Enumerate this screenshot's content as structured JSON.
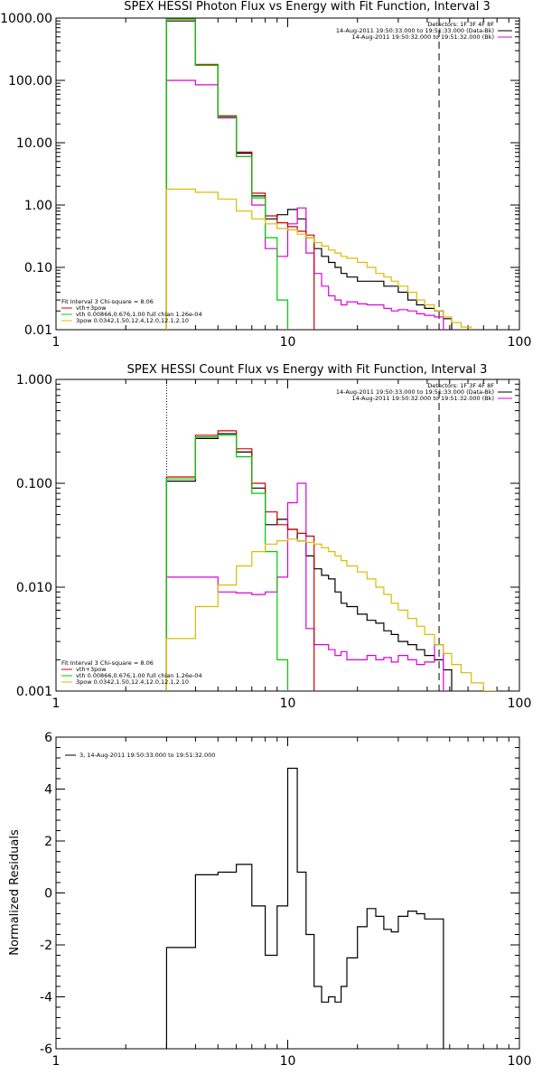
{
  "chart_data": [
    {
      "type": "line",
      "title": "SPEX HESSI Photon Flux vs Energy with Fit Function, Interval 3",
      "xscale": "log",
      "yscale": "log",
      "xlim": [
        1,
        100
      ],
      "ylim": [
        0.01,
        1000
      ],
      "xticks": [
        1,
        10,
        100
      ],
      "xtick_labels": [
        "1",
        "10",
        "100"
      ],
      "yticks": [
        0.01,
        0.1,
        1,
        10,
        100,
        1000
      ],
      "ytick_labels": [
        "0.01",
        "0.10",
        "1.00",
        "10.00",
        "100.00",
        "1000.00"
      ],
      "vlines": [
        {
          "x": 3.0,
          "style": "dotted"
        },
        {
          "x": 45,
          "style": "dashed"
        }
      ],
      "legend_top_right": [
        {
          "text": "Detectors: 1F 3F 4F 8F",
          "color": "#000000"
        },
        {
          "text": "14-Aug-2011 19:50:33.000 to 19:51:33.000 (Data-Bk)",
          "color": "#000000"
        },
        {
          "text": "14-Aug-2011 19:50:32.000 to 19:51:32.000 (Bk)",
          "color": "#dd00dd"
        }
      ],
      "legend_bottom_left": [
        {
          "text": "Fit Interval 3   Chi-square = 8.06",
          "color": "#000000"
        },
        {
          "text": "vth+3pow",
          "color": "#cc0000"
        },
        {
          "text": "vth 0.00866,0.676,1.00   full chian 1.26e-04",
          "color": "#00cc00"
        },
        {
          "text": "3pow 0.0342,1.50,12.4,12.0,12.1,2.10",
          "color": "#ddbb00"
        }
      ],
      "bin_edges": [
        3.0,
        4.0,
        5.0,
        6.0,
        7.0,
        8.0,
        9.0,
        10.0,
        11.0,
        12.0,
        13.0,
        14.0,
        15.0,
        16.0,
        17.0,
        18.0,
        20.0,
        22.0,
        24.0,
        26.0,
        28.0,
        30.0,
        33.0,
        36.0,
        39.0,
        43.0,
        47.0,
        51.0,
        56.0,
        62.0
      ],
      "series": [
        {
          "name": "Data-Bk",
          "color": "#000000",
          "values": [
            900,
            175,
            26,
            6.8,
            1.4,
            0.6,
            0.7,
            0.85,
            0.6,
            0.3,
            0.2,
            0.15,
            0.12,
            0.1,
            0.08,
            0.07,
            0.06,
            0.06,
            0.06,
            0.05,
            0.05,
            0.04,
            0.03,
            0.025,
            0.022,
            0.02,
            0.015
          ]
        },
        {
          "name": "Bk",
          "color": "#dd00dd",
          "values": [
            100,
            85,
            25,
            6,
            1,
            0.2,
            0.15,
            0.5,
            0.9,
            0.17,
            0.08,
            0.05,
            0.035,
            0.03,
            0.025,
            0.028,
            0.026,
            0.025,
            0.025,
            0.022,
            0.02,
            0.021,
            0.02,
            0.018,
            0.017,
            0.016
          ]
        },
        {
          "name": "vth+3pow",
          "color": "#cc0000",
          "values": [
            970,
            180,
            27,
            7.1,
            1.55,
            0.67,
            0.52,
            0.45,
            0.38,
            0.33
          ]
        },
        {
          "name": "vth",
          "color": "#00cc00",
          "values": [
            960,
            175,
            26,
            6,
            1.3,
            0.3,
            0.03
          ]
        },
        {
          "name": "3pow",
          "color": "#ddbb00",
          "values": [
            1.8,
            1.6,
            1.25,
            0.8,
            0.6,
            0.5,
            0.42,
            0.4,
            0.34,
            0.3,
            0.25,
            0.22,
            0.19,
            0.17,
            0.15,
            0.14,
            0.12,
            0.1,
            0.08,
            0.07,
            0.06,
            0.05,
            0.04,
            0.03,
            0.025,
            0.02,
            0.016,
            0.013,
            0.011
          ]
        }
      ]
    },
    {
      "type": "line",
      "title": "SPEX HESSI Count Flux vs Energy with Fit Function, Interval 3",
      "xscale": "log",
      "yscale": "log",
      "xlim": [
        1,
        100
      ],
      "ylim": [
        0.001,
        1.0
      ],
      "xticks": [
        1,
        10,
        100
      ],
      "xtick_labels": [
        "1",
        "10",
        "100"
      ],
      "yticks": [
        0.001,
        0.01,
        0.1,
        1.0
      ],
      "ytick_labels": [
        "0.001",
        "0.010",
        "0.100",
        "1.000"
      ],
      "vlines": [
        {
          "x": 3.0,
          "style": "dotted"
        },
        {
          "x": 45,
          "style": "dashed"
        }
      ],
      "legend_top_right": [
        {
          "text": "Detectors: 1F 3F 4F 8F",
          "color": "#000000"
        },
        {
          "text": "14-Aug-2011 19:50:33.000 to 19:51:33.000 (Data-Bk)",
          "color": "#000000"
        },
        {
          "text": "14-Aug-2011 19:50:32.000 to 19:51:32.000 (Bk)",
          "color": "#dd00dd"
        }
      ],
      "legend_bottom_left": [
        {
          "text": "Fit Interval 3   Chi-square = 8.06",
          "color": "#000000"
        },
        {
          "text": "vth+3pow",
          "color": "#cc0000"
        },
        {
          "text": "vth 0.00866,0.676,1.00   full chian 1.26e-04",
          "color": "#00cc00"
        },
        {
          "text": "3pow 0.0342,1.50,12.4,12.0,12.1,2.10",
          "color": "#ddbb00"
        }
      ],
      "bin_edges": [
        3.0,
        4.0,
        5.0,
        6.0,
        7.0,
        8.0,
        9.0,
        10.0,
        11.0,
        12.0,
        13.0,
        14.0,
        15.0,
        16.0,
        17.0,
        18.0,
        20.0,
        22.0,
        24.0,
        26.0,
        28.0,
        30.0,
        33.0,
        36.0,
        39.0,
        43.0,
        47.0,
        51.0,
        56.0,
        62.0,
        70.0,
        80.0
      ],
      "series": [
        {
          "name": "Data-Bk",
          "color": "#000000",
          "values": [
            0.105,
            0.27,
            0.3,
            0.2,
            0.09,
            0.04,
            0.045,
            0.036,
            0.028,
            0.02,
            0.015,
            0.013,
            0.012,
            0.009,
            0.007,
            0.0065,
            0.0055,
            0.0048,
            0.0045,
            0.0038,
            0.0035,
            0.003,
            0.0028,
            0.0025,
            0.0022,
            0.002,
            0.0016
          ]
        },
        {
          "name": "Bk",
          "color": "#dd00dd",
          "values": [
            0.0125,
            0.0125,
            0.009,
            0.0088,
            0.0085,
            0.009,
            0.0125,
            0.065,
            0.1,
            0.004,
            0.0028,
            0.0028,
            0.0025,
            0.0022,
            0.0024,
            0.002,
            0.002,
            0.0022,
            0.002,
            0.0021,
            0.0019,
            0.0022,
            0.002,
            0.0018,
            0.0019,
            0.0028
          ]
        },
        {
          "name": "vth+3pow",
          "color": "#cc0000",
          "values": [
            0.115,
            0.29,
            0.32,
            0.215,
            0.1,
            0.053,
            0.04,
            0.036,
            0.033,
            0.031
          ]
        },
        {
          "name": "vth",
          "color": "#00cc00",
          "values": [
            0.11,
            0.28,
            0.29,
            0.18,
            0.08,
            0.022,
            0.002
          ]
        },
        {
          "name": "3pow",
          "color": "#ddbb00",
          "values": [
            0.0032,
            0.0065,
            0.0105,
            0.016,
            0.022,
            0.026,
            0.028,
            0.029,
            0.028,
            0.027,
            0.026,
            0.024,
            0.022,
            0.02,
            0.018,
            0.016,
            0.014,
            0.012,
            0.01,
            0.0085,
            0.007,
            0.006,
            0.005,
            0.0042,
            0.0035,
            0.0028,
            0.0023,
            0.0018,
            0.0015,
            0.0012,
            0.001
          ]
        }
      ]
    },
    {
      "type": "line",
      "title": "",
      "xscale": "log",
      "yscale": "linear",
      "xlim": [
        1,
        100
      ],
      "ylim": [
        -6,
        6
      ],
      "xticks": [
        1,
        10,
        100
      ],
      "xtick_labels": [
        "1",
        "10",
        "100"
      ],
      "yticks": [
        -6,
        -4,
        -2,
        0,
        2,
        4,
        6
      ],
      "ytick_labels": [
        "-6",
        "-4",
        "-2",
        "0",
        "2",
        "4",
        "6"
      ],
      "ylabel": "Normalized Residuals",
      "legend_top_left": [
        {
          "text": "3, 14-Aug-2011 19:50:33.000 to 19:51:32.000",
          "color": "#000000"
        }
      ],
      "bin_edges": [
        3.0,
        4.0,
        5.0,
        6.0,
        7.0,
        8.0,
        9.0,
        10.0,
        11.0,
        12.0,
        13.0,
        14.0,
        15.0,
        16.0,
        17.0,
        18.0,
        20.0,
        22.0,
        24.0,
        26.0,
        28.0,
        30.0,
        33.0,
        36.0,
        39.0,
        43.0,
        47.0
      ],
      "series": [
        {
          "name": "3, 14-Aug-2011 19:50:33.000 to 19:51:32.000",
          "color": "#000000",
          "values": [
            -2.1,
            0.7,
            0.8,
            1.1,
            -0.5,
            -2.4,
            -0.5,
            4.8,
            0.8,
            -1.6,
            -3.6,
            -4.2,
            -4.0,
            -4.2,
            -3.6,
            -2.5,
            -1.3,
            -0.6,
            -0.9,
            -1.4,
            -1.5,
            -0.9,
            -0.7,
            -0.8,
            -1.0,
            -1.0
          ]
        }
      ]
    }
  ]
}
